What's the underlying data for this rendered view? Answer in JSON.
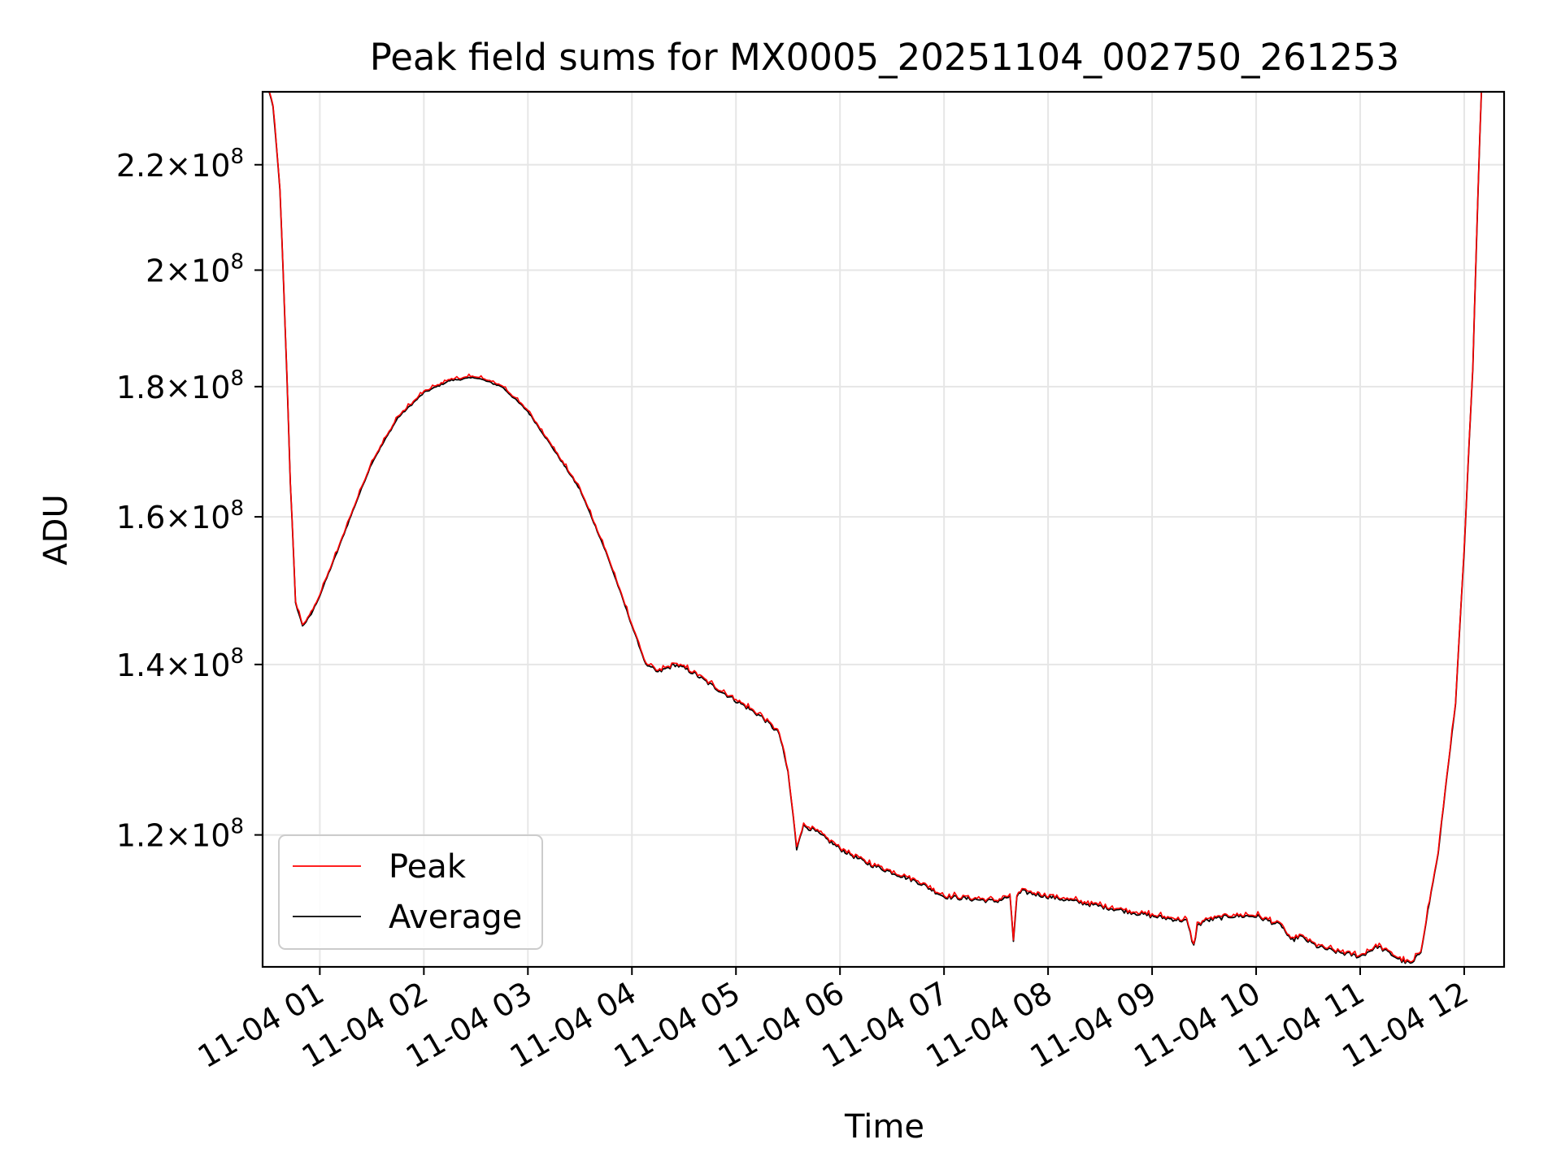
{
  "chart_data": {
    "type": "line",
    "title": "Peak field sums for MX0005_20251104_002750_261253",
    "xlabel": "Time",
    "ylabel": "ADU",
    "y_scale": "log",
    "ylim": [
      106500000,
      235000000
    ],
    "xlim": [
      "2025-11-04 00:27:00",
      "2025-11-04 12:23:00"
    ],
    "grid": true,
    "legend_position": "lower-left",
    "x_ticks": [
      {
        "time": "2025-11-04 01:00",
        "label": "11-04 01"
      },
      {
        "time": "2025-11-04 02:00",
        "label": "11-04 02"
      },
      {
        "time": "2025-11-04 03:00",
        "label": "11-04 03"
      },
      {
        "time": "2025-11-04 04:00",
        "label": "11-04 04"
      },
      {
        "time": "2025-11-04 05:00",
        "label": "11-04 05"
      },
      {
        "time": "2025-11-04 06:00",
        "label": "11-04 06"
      },
      {
        "time": "2025-11-04 07:00",
        "label": "11-04 07"
      },
      {
        "time": "2025-11-04 08:00",
        "label": "11-04 08"
      },
      {
        "time": "2025-11-04 09:00",
        "label": "11-04 09"
      },
      {
        "time": "2025-11-04 10:00",
        "label": "11-04 10"
      },
      {
        "time": "2025-11-04 11:00",
        "label": "11-04 11"
      },
      {
        "time": "2025-11-04 12:00",
        "label": "11-04 12"
      }
    ],
    "y_ticks": [
      {
        "value": 120000000,
        "mantissa": "1.2",
        "base": "10",
        "exp": "8"
      },
      {
        "value": 140000000,
        "mantissa": "1.4",
        "base": "10",
        "exp": "8"
      },
      {
        "value": 160000000,
        "mantissa": "1.6",
        "base": "10",
        "exp": "8"
      },
      {
        "value": 180000000,
        "mantissa": "1.8",
        "base": "10",
        "exp": "8"
      },
      {
        "value": 200000000,
        "mantissa": "2",
        "base": "10",
        "exp": "8"
      },
      {
        "value": 220000000,
        "mantissa": "2.2",
        "base": "10",
        "exp": "8"
      }
    ],
    "times_symbol": "×",
    "series": [
      {
        "name": "Average",
        "color": "#000000",
        "x": [
          "2025-11-04 00:27",
          "2025-11-04 00:30",
          "2025-11-04 00:33",
          "2025-11-04 00:37",
          "2025-11-04 00:40",
          "2025-11-04 00:43",
          "2025-11-04 00:46",
          "2025-11-04 00:50",
          "2025-11-04 00:52",
          "2025-11-04 00:55",
          "2025-11-04 01:00",
          "2025-11-04 01:10",
          "2025-11-04 01:20",
          "2025-11-04 01:30",
          "2025-11-04 01:45",
          "2025-11-04 02:00",
          "2025-11-04 02:15",
          "2025-11-04 02:30",
          "2025-11-04 02:45",
          "2025-11-04 03:00",
          "2025-11-04 03:15",
          "2025-11-04 03:30",
          "2025-11-04 03:45",
          "2025-11-04 04:00",
          "2025-11-04 04:08",
          "2025-11-04 04:15",
          "2025-11-04 04:25",
          "2025-11-04 04:30",
          "2025-11-04 04:35",
          "2025-11-04 04:45",
          "2025-11-04 05:00",
          "2025-11-04 05:15",
          "2025-11-04 05:25",
          "2025-11-04 05:30",
          "2025-11-04 05:33",
          "2025-11-04 05:35",
          "2025-11-04 05:37",
          "2025-11-04 05:39",
          "2025-11-04 05:45",
          "2025-11-04 06:00",
          "2025-11-04 06:15",
          "2025-11-04 06:30",
          "2025-11-04 06:45",
          "2025-11-04 07:00",
          "2025-11-04 07:30",
          "2025-11-04 07:38",
          "2025-11-04 07:40",
          "2025-11-04 07:42",
          "2025-11-04 07:45",
          "2025-11-04 08:00",
          "2025-11-04 08:30",
          "2025-11-04 09:00",
          "2025-11-04 09:20",
          "2025-11-04 09:24",
          "2025-11-04 09:26",
          "2025-11-04 09:30",
          "2025-11-04 09:45",
          "2025-11-04 10:00",
          "2025-11-04 10:15",
          "2025-11-04 10:20",
          "2025-11-04 10:25",
          "2025-11-04 10:35",
          "2025-11-04 10:45",
          "2025-11-04 11:00",
          "2025-11-04 11:10",
          "2025-11-04 11:20",
          "2025-11-04 11:25",
          "2025-11-04 11:30",
          "2025-11-04 11:35",
          "2025-11-04 11:45",
          "2025-11-04 11:55",
          "2025-11-04 12:00",
          "2025-11-04 12:05",
          "2025-11-04 12:10",
          "2025-11-04 12:23"
        ],
        "y": [
          236000000,
          236000000,
          232000000,
          215000000,
          190000000,
          165000000,
          148000000,
          145000000,
          145500000,
          146500000,
          149000000,
          155000000,
          161500000,
          168000000,
          175000000,
          179000000,
          181000000,
          181500000,
          180000000,
          176000000,
          170000000,
          164000000,
          155000000,
          145000000,
          140000000,
          139000000,
          140000000,
          139500000,
          139000000,
          137500000,
          135500000,
          133500000,
          131500000,
          127000000,
          122000000,
          118500000,
          120000000,
          121000000,
          120500000,
          118500000,
          117000000,
          116000000,
          115000000,
          113500000,
          113000000,
          113500000,
          109000000,
          113500000,
          114000000,
          113500000,
          112500000,
          111500000,
          111000000,
          108500000,
          110500000,
          111000000,
          111500000,
          111500000,
          110500000,
          109000000,
          109500000,
          108500000,
          108000000,
          107500000,
          108500000,
          107500000,
          107000000,
          106800000,
          108000000,
          118000000,
          135000000,
          155000000,
          183000000,
          236000000,
          236000000
        ]
      },
      {
        "name": "Peak",
        "color": "#ff0000"
      }
    ]
  }
}
